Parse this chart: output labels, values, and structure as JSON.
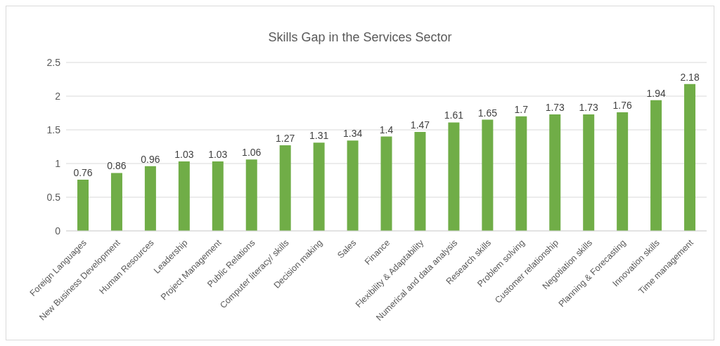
{
  "chart_data": {
    "type": "bar",
    "title": "Skills Gap in the Services Sector",
    "categories": [
      "Foreign Languages",
      "New Business Development",
      "Human Resources",
      "Leadership",
      "Project Management",
      "Public Relations",
      "Computer literacy/ skills",
      "Decision making",
      "Sales",
      "Finance",
      "Flexibility & Adaptability",
      "Numerical and data analysis",
      "Research skills",
      "Problem solving",
      "Customer relationship",
      "Negotiation skills",
      "Planning & Forecasting",
      "Innovation skills",
      "Time management"
    ],
    "values": [
      0.76,
      0.86,
      0.96,
      1.03,
      1.03,
      1.06,
      1.27,
      1.31,
      1.34,
      1.4,
      1.47,
      1.61,
      1.65,
      1.7,
      1.73,
      1.73,
      1.76,
      1.94,
      2.18
    ],
    "color": "#70ad47",
    "ylim": [
      0,
      2.5
    ],
    "yticks": [
      0,
      0.5,
      1,
      1.5,
      2,
      2.5
    ],
    "grid": "y",
    "data_labels": true
  }
}
